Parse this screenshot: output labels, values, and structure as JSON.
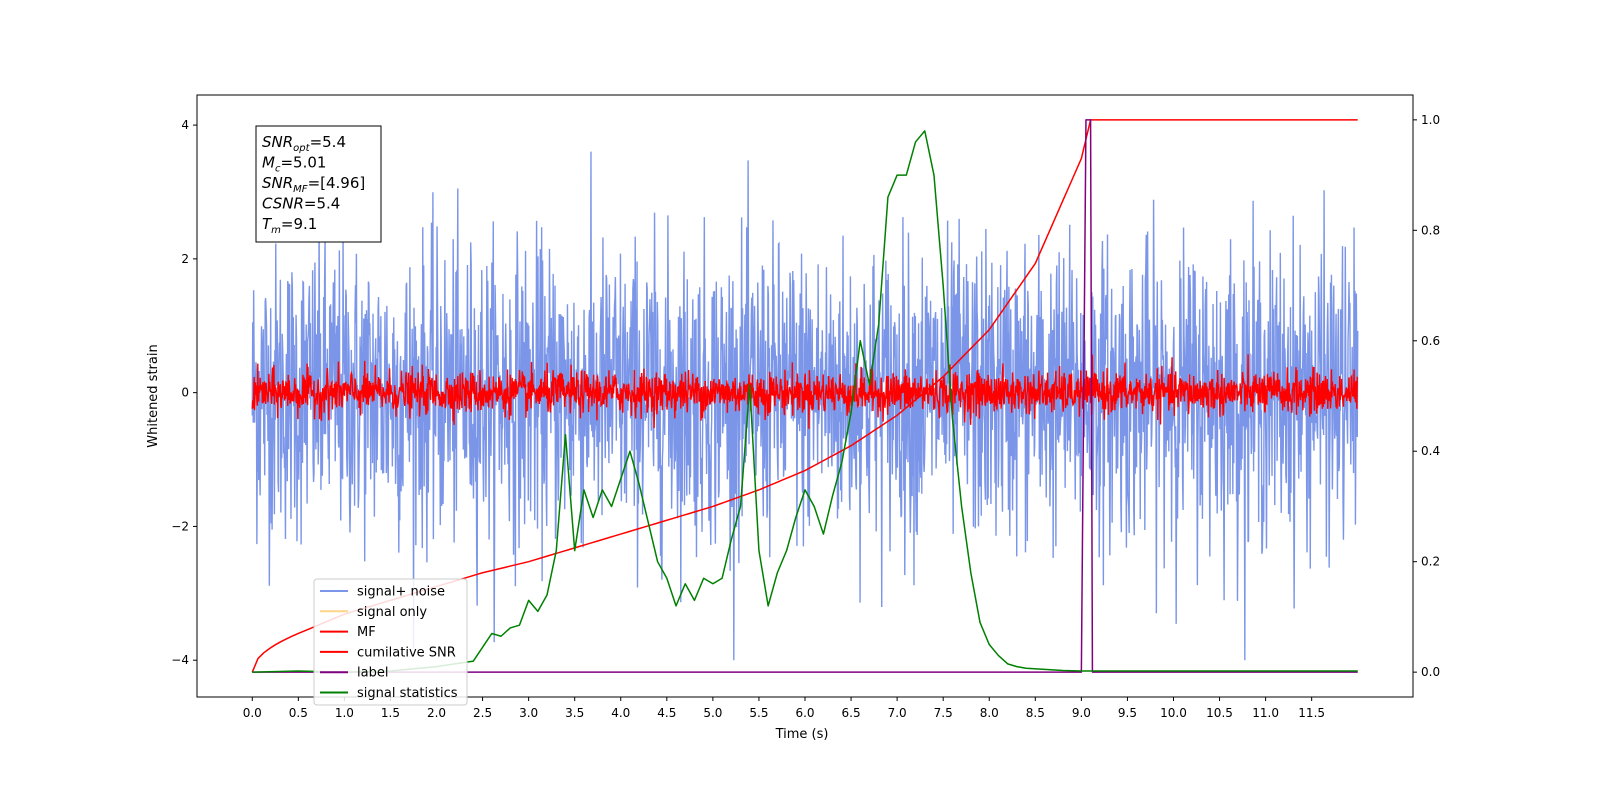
{
  "chart_data": {
    "type": "line",
    "xlabel": "Time (s)",
    "ylabel": "Whitened strain",
    "xlim": [
      -0.6,
      12.6
    ],
    "ylim": [
      -4.55,
      4.45
    ],
    "y2lim": [
      -0.045,
      1.045
    ],
    "x_ticks": [
      "0.0",
      "0.5",
      "1.0",
      "1.5",
      "2.0",
      "2.5",
      "3.0",
      "3.5",
      "4.0",
      "4.5",
      "5.0",
      "5.5",
      "6.0",
      "6.5",
      "7.0",
      "7.5",
      "8.0",
      "8.5",
      "9.0",
      "9.5",
      "10.0",
      "10.5",
      "11.0",
      "11.5"
    ],
    "y_ticks": [
      "−4",
      "−2",
      "0",
      "2",
      "4"
    ],
    "y2_ticks": [
      "0.0",
      "0.2",
      "0.4",
      "0.6",
      "0.8",
      "1.0"
    ],
    "grid": false,
    "legend_position": "lower-left",
    "annotation": {
      "lines": [
        {
          "base": "SNR",
          "sub": "opt",
          "value": "=5.4"
        },
        {
          "base": "M",
          "sub": "c",
          "value": "=5.01"
        },
        {
          "base": "SNR",
          "sub": "MF",
          "value": "=[4.96]"
        },
        {
          "base": "CSNR",
          "sub": "",
          "value": "=5.4"
        },
        {
          "base": "T",
          "sub": "m",
          "value": "=9.1"
        }
      ]
    },
    "series": [
      {
        "name": "signal+ noise",
        "color": "#7b96e8",
        "axis": "left",
        "envelope": {
          "x_range": [
            0,
            12
          ],
          "typical_amplitude": 2.3,
          "peak": 4.0,
          "min_peak": -4.1
        }
      },
      {
        "name": "signal only",
        "color": "#fdd58a",
        "axis": "left"
      },
      {
        "name": "MF",
        "color": "#ff0000",
        "axis": "left",
        "envelope": {
          "x_range": [
            0,
            12
          ],
          "typical_amplitude": 0.3,
          "peak": 1.0
        }
      },
      {
        "name": "cumilative SNR",
        "color": "#ff0000",
        "axis": "right",
        "x": [
          0,
          0.5,
          1.0,
          1.5,
          2.0,
          2.5,
          3.0,
          3.5,
          4.0,
          4.5,
          5.0,
          5.5,
          6.0,
          6.5,
          7.0,
          7.5,
          8.0,
          8.5,
          9.0,
          9.1,
          12.0
        ],
        "values": [
          0.0,
          0.07,
          0.105,
          0.13,
          0.155,
          0.18,
          0.2,
          0.225,
          0.25,
          0.275,
          0.3,
          0.33,
          0.365,
          0.41,
          0.465,
          0.535,
          0.62,
          0.74,
          0.93,
          1.0,
          1.0
        ]
      },
      {
        "name": "label",
        "color": "#800080",
        "axis": "right",
        "x": [
          0,
          9.0,
          9.05,
          9.1,
          9.12,
          12.0
        ],
        "values": [
          0,
          0,
          1.0,
          1.0,
          0,
          0
        ]
      },
      {
        "name": "signal statistics",
        "color": "#008000",
        "axis": "right",
        "x": [
          0,
          0.5,
          1.0,
          1.5,
          2.0,
          2.2,
          2.4,
          2.6,
          2.7,
          2.8,
          2.9,
          3.0,
          3.1,
          3.2,
          3.3,
          3.4,
          3.5,
          3.6,
          3.7,
          3.8,
          3.9,
          4.0,
          4.1,
          4.2,
          4.3,
          4.4,
          4.5,
          4.6,
          4.7,
          4.8,
          4.9,
          5.0,
          5.1,
          5.2,
          5.3,
          5.4,
          5.5,
          5.6,
          5.7,
          5.8,
          5.9,
          6.0,
          6.1,
          6.2,
          6.3,
          6.4,
          6.5,
          6.6,
          6.7,
          6.8,
          6.9,
          7.0,
          7.1,
          7.2,
          7.3,
          7.4,
          7.5,
          7.6,
          7.7,
          7.8,
          7.9,
          8.0,
          8.1,
          8.2,
          8.3,
          8.4,
          8.6,
          8.8,
          9.0,
          12.0
        ],
        "values": [
          0.0,
          0.002,
          0.0,
          0.002,
          0.01,
          0.015,
          0.02,
          0.07,
          0.065,
          0.08,
          0.085,
          0.13,
          0.11,
          0.14,
          0.22,
          0.43,
          0.22,
          0.33,
          0.28,
          0.33,
          0.3,
          0.35,
          0.4,
          0.34,
          0.27,
          0.2,
          0.17,
          0.12,
          0.16,
          0.13,
          0.17,
          0.16,
          0.17,
          0.24,
          0.3,
          0.52,
          0.22,
          0.12,
          0.18,
          0.22,
          0.28,
          0.33,
          0.3,
          0.25,
          0.32,
          0.38,
          0.47,
          0.6,
          0.52,
          0.63,
          0.86,
          0.9,
          0.9,
          0.96,
          0.98,
          0.9,
          0.7,
          0.46,
          0.3,
          0.18,
          0.09,
          0.05,
          0.03,
          0.015,
          0.01,
          0.007,
          0.005,
          0.003,
          0.002,
          0.002
        ]
      }
    ]
  }
}
